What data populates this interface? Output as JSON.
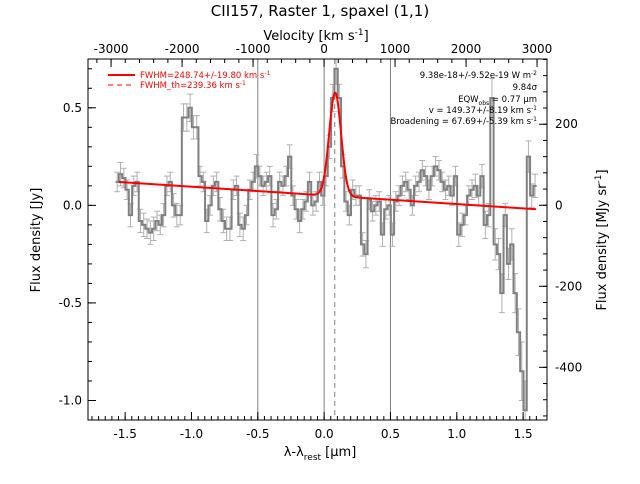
{
  "chart_data": {
    "type": "line",
    "title": "CII157, Raster 1, spaxel (1,1)",
    "xlabel": "λ-λ_rest [μm]",
    "xlabel_parts": {
      "main": "λ-λ",
      "sub": "rest",
      "unit_open": " [",
      "mu": "μ",
      "unit_close": "m]"
    },
    "ylabel": "Flux density [Jy]",
    "top_axis_label": "Velocity [km s^-1]",
    "top_axis_label_parts": {
      "main": "Velocity [km s",
      "sup": "-1",
      "close": "]"
    },
    "right_axis_label": "Flux density [MJy sr^-1]",
    "right_axis_label_parts": {
      "main": "Flux density [MJy sr",
      "sup": "-1",
      "close": "]"
    },
    "xlim": [
      -1.78,
      1.68
    ],
    "ylim": [
      -1.1,
      0.75
    ],
    "right_ylim": [
      -530,
      361
    ],
    "top_xlim": [
      -3325,
      3140
    ],
    "x_ticks": [
      -1.5,
      -1.0,
      -0.5,
      0.0,
      0.5,
      1.0,
      1.5
    ],
    "x_tick_labels": [
      "-1.5",
      "-1.0",
      "-0.5",
      "0.0",
      "0.5",
      "1.0",
      "1.5"
    ],
    "y_ticks": [
      -1.0,
      -0.5,
      0.0,
      0.5
    ],
    "y_tick_labels": [
      "-1.0",
      "-0.5",
      "0.0",
      "0.5"
    ],
    "top_ticks": [
      -3000,
      -2000,
      -1000,
      0,
      1000,
      2000,
      3000
    ],
    "top_tick_labels": [
      "-3000",
      "-2000",
      "-1000",
      "0",
      "1000",
      "2000",
      "3000"
    ],
    "right_ticks": [
      -400,
      -200,
      0,
      200
    ],
    "right_tick_labels": [
      "-400",
      "-200",
      "0",
      "200"
    ],
    "vertical_lines": [
      -0.5,
      0.0,
      0.5
    ],
    "rest_line_x": 0.08,
    "legend": [
      {
        "label": "FWHM=248.74+/-19.80 km s",
        "sup": "-1",
        "style": "solid",
        "color": "#ff0000"
      },
      {
        "label": "FWHM_th=239.36 km s",
        "sup": "-1",
        "style": "dashed",
        "color": "#ff0000"
      }
    ],
    "annotations": [
      {
        "text": "9.38e-18+/-9.52e-19 W m",
        "sup": "-2"
      },
      {
        "text": "9.84σ"
      },
      {
        "text": "EQW",
        "sub": "obs",
        "tail": " = 0.77 μm"
      },
      {
        "text": "v = 149.37+/-8.19 km s",
        "sup": "-1"
      },
      {
        "text": "Broadening = 67.69+/-5.39 km s",
        "sup": "-1"
      }
    ],
    "colors": {
      "data": "#808080",
      "error": "#b0b0b0",
      "fit": "#ff0000",
      "vlines": "#808080",
      "frame": "#000000"
    },
    "fit": {
      "amplitude": 0.53,
      "center": 0.083,
      "sigma": 0.045,
      "baseline_at": [
        [
          -1.55,
          0.12
        ],
        [
          1.6,
          -0.02
        ]
      ]
    },
    "series": [
      {
        "kind": "data",
        "x": [
          -1.56,
          -1.535,
          -1.51,
          -1.485,
          -1.46,
          -1.435,
          -1.41,
          -1.385,
          -1.36,
          -1.335,
          -1.31,
          -1.285,
          -1.26,
          -1.235,
          -1.21,
          -1.185,
          -1.16,
          -1.135,
          -1.11,
          -1.085,
          -1.06,
          -1.035,
          -1.01,
          -0.985,
          -0.96,
          -0.935,
          -0.91,
          -0.885,
          -0.86,
          -0.835,
          -0.81,
          -0.785,
          -0.76,
          -0.735,
          -0.71,
          -0.685,
          -0.66,
          -0.635,
          -0.61,
          -0.585,
          -0.56,
          -0.535,
          -0.51,
          -0.485,
          -0.46,
          -0.435,
          -0.41,
          -0.385,
          -0.36,
          -0.335,
          -0.31,
          -0.285,
          -0.26,
          -0.235,
          -0.21,
          -0.185,
          -0.16,
          -0.135,
          -0.11,
          -0.085,
          -0.06,
          -0.035,
          -0.01,
          0.015,
          0.04,
          0.065,
          0.09,
          0.115,
          0.14,
          0.165,
          0.19,
          0.215,
          0.24,
          0.265,
          0.29,
          0.315,
          0.34,
          0.365,
          0.39,
          0.415,
          0.44,
          0.465,
          0.49,
          0.515,
          0.54,
          0.565,
          0.59,
          0.615,
          0.64,
          0.665,
          0.69,
          0.715,
          0.74,
          0.765,
          0.79,
          0.815,
          0.84,
          0.865,
          0.89,
          0.915,
          0.94,
          0.965,
          0.99,
          1.015,
          1.04,
          1.065,
          1.09,
          1.115,
          1.14,
          1.165,
          1.19,
          1.215,
          1.24,
          1.265,
          1.29,
          1.315,
          1.34,
          1.365,
          1.39,
          1.415,
          1.44,
          1.465,
          1.49,
          1.515,
          1.54,
          1.565,
          1.59
        ],
        "y": [
          0.12,
          0.16,
          0.14,
          0.08,
          -0.05,
          0.1,
          0.12,
          -0.08,
          -0.1,
          -0.12,
          -0.14,
          -0.12,
          -0.08,
          -0.1,
          -0.05,
          0.1,
          0.12,
          0.0,
          -0.05,
          -0.05,
          0.45,
          0.45,
          0.5,
          0.4,
          0.4,
          0.15,
          0.12,
          -0.08,
          0.0,
          0.1,
          0.12,
          -0.02,
          -0.08,
          -0.12,
          -0.12,
          0.08,
          0.1,
          -0.1,
          -0.12,
          -0.05,
          0.08,
          0.12,
          0.2,
          0.15,
          0.1,
          0.12,
          0.15,
          -0.05,
          -0.02,
          0.12,
          0.1,
          0.15,
          0.25,
          0.05,
          -0.02,
          -0.08,
          -0.02,
          0.02,
          0.12,
          0.0,
          0.02,
          0.12,
          0.05,
          0.15,
          0.3,
          0.55,
          0.7,
          0.55,
          0.2,
          0.02,
          -0.05,
          0.08,
          0.05,
          0.05,
          -0.2,
          -0.25,
          0.03,
          -0.03,
          0.0,
          0.02,
          -0.15,
          -0.02,
          0.0,
          -0.15,
          0.02,
          0.05,
          0.1,
          0.12,
          0.08,
          0.0,
          0.1,
          0.12,
          0.18,
          0.15,
          0.08,
          0.15,
          0.2,
          0.18,
          0.12,
          0.08,
          0.1,
          0.05,
          0.15,
          -0.15,
          -0.1,
          -0.05,
          0.05,
          0.08,
          0.1,
          0.05,
          0.15,
          -0.1,
          -0.05,
          0.55,
          -0.2,
          -0.25,
          -0.45,
          -0.05,
          -0.3,
          -0.2,
          -0.45,
          -0.65,
          -0.85,
          -1.05,
          0.25,
          0.05,
          0.1
        ],
        "err": [
          0.05,
          0.06,
          0.05,
          0.05,
          0.06,
          0.05,
          0.05,
          0.06,
          0.06,
          0.05,
          0.06,
          0.06,
          0.05,
          0.05,
          0.06,
          0.05,
          0.05,
          0.06,
          0.06,
          0.05,
          0.07,
          0.07,
          0.07,
          0.06,
          0.06,
          0.05,
          0.05,
          0.06,
          0.05,
          0.05,
          0.05,
          0.06,
          0.06,
          0.06,
          0.06,
          0.05,
          0.05,
          0.06,
          0.06,
          0.05,
          0.05,
          0.05,
          0.06,
          0.05,
          0.05,
          0.05,
          0.05,
          0.06,
          0.05,
          0.05,
          0.05,
          0.05,
          0.06,
          0.05,
          0.05,
          0.06,
          0.05,
          0.05,
          0.05,
          0.05,
          0.05,
          0.05,
          0.05,
          0.05,
          0.06,
          0.07,
          0.08,
          0.07,
          0.06,
          0.05,
          0.05,
          0.05,
          0.05,
          0.05,
          0.06,
          0.07,
          0.05,
          0.05,
          0.05,
          0.05,
          0.06,
          0.05,
          0.05,
          0.06,
          0.05,
          0.05,
          0.05,
          0.05,
          0.05,
          0.05,
          0.05,
          0.05,
          0.05,
          0.05,
          0.05,
          0.05,
          0.05,
          0.05,
          0.05,
          0.05,
          0.05,
          0.05,
          0.05,
          0.06,
          0.06,
          0.05,
          0.05,
          0.05,
          0.06,
          0.05,
          0.06,
          0.07,
          0.06,
          0.1,
          0.08,
          0.08,
          0.1,
          0.06,
          0.08,
          0.08,
          0.1,
          0.12,
          0.15,
          0.15,
          0.08,
          0.06,
          0.06
        ]
      }
    ]
  }
}
